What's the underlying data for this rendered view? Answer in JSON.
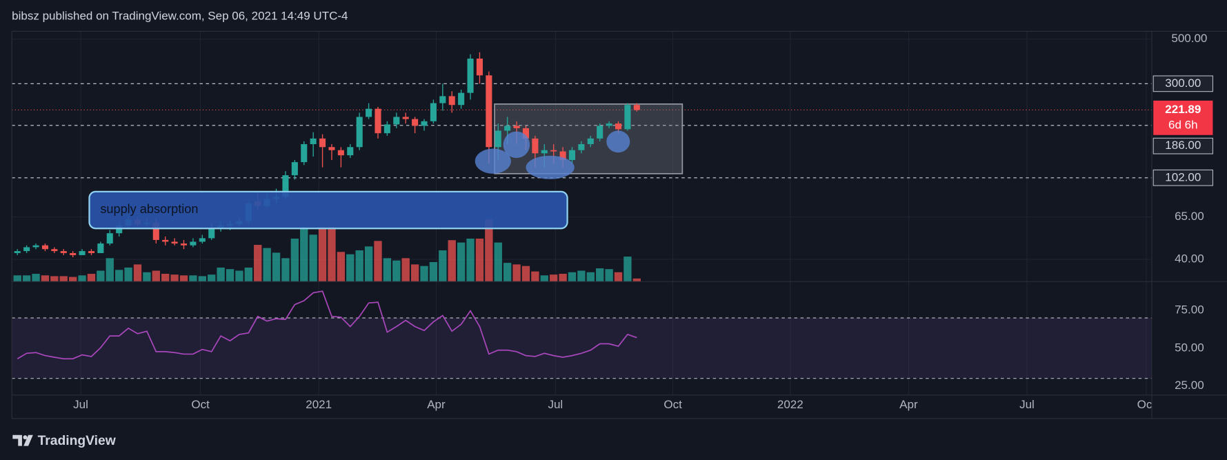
{
  "header": "bibsz published on TradingView.com, Sep 06, 2021 14:49 UTC-4",
  "footer": "TradingView",
  "chart_data": [
    {
      "type": "candlestick",
      "log_scale": true,
      "grid": true,
      "up_color": "#26a69a",
      "down_color": "#ef5350",
      "open": [
        43,
        44,
        46,
        47,
        45,
        44,
        43,
        42,
        44,
        43,
        48,
        54,
        59,
        63,
        60,
        61,
        50,
        49,
        48,
        47,
        49,
        51,
        57,
        59,
        60,
        62,
        78,
        74,
        80,
        82,
        105,
        122,
        150,
        160,
        145,
        140,
        132,
        145,
        205,
        225,
        170,
        188,
        205,
        200,
        185,
        195,
        240,
        260,
        235,
        270,
        400,
        330,
        145,
        175,
        185,
        180,
        160,
        135,
        140,
        138,
        125,
        140,
        150,
        160,
        185,
        190,
        178,
        235
      ],
      "high": [
        45,
        47,
        48,
        48,
        46,
        45,
        44,
        45,
        45,
        49,
        56,
        61,
        66,
        65,
        64,
        64,
        52,
        51,
        50,
        51,
        53,
        60,
        62,
        63,
        64,
        78,
        86,
        85,
        90,
        110,
        125,
        155,
        172,
        168,
        150,
        145,
        150,
        215,
        240,
        230,
        195,
        215,
        215,
        205,
        200,
        250,
        300,
        275,
        280,
        420,
        430,
        345,
        190,
        205,
        195,
        185,
        165,
        150,
        150,
        145,
        145,
        155,
        165,
        190,
        195,
        195,
        240,
        240
      ],
      "low": [
        42,
        43,
        45,
        44,
        43,
        42,
        41,
        42,
        42,
        43,
        47,
        52,
        57,
        58,
        58,
        48,
        47,
        47,
        45,
        46,
        48,
        50,
        55,
        56,
        58,
        60,
        70,
        72,
        76,
        80,
        100,
        118,
        130,
        115,
        125,
        115,
        128,
        140,
        200,
        160,
        165,
        180,
        190,
        170,
        175,
        190,
        220,
        215,
        225,
        250,
        300,
        120,
        125,
        150,
        150,
        140,
        115,
        115,
        120,
        115,
        120,
        135,
        145,
        155,
        180,
        170,
        175,
        218
      ],
      "close": [
        44,
        46,
        47,
        45,
        44,
        43,
        42,
        44,
        43,
        48,
        54,
        59,
        63,
        60,
        61,
        50,
        49,
        48,
        47,
        49,
        51,
        57,
        59,
        60,
        62,
        76,
        74,
        80,
        82,
        105,
        122,
        150,
        160,
        145,
        140,
        132,
        145,
        205,
        225,
        170,
        188,
        205,
        200,
        185,
        195,
        240,
        260,
        235,
        270,
        400,
        330,
        145,
        175,
        185,
        180,
        160,
        135,
        140,
        138,
        125,
        140,
        150,
        160,
        185,
        190,
        178,
        235,
        221.89
      ],
      "volume": {
        "values": [
          8,
          8,
          10,
          8,
          7,
          7,
          6,
          8,
          10,
          14,
          30,
          15,
          18,
          22,
          12,
          14,
          10,
          9,
          8,
          8,
          7,
          9,
          18,
          16,
          14,
          18,
          47,
          43,
          37,
          30,
          55,
          70,
          60,
          70,
          70,
          38,
          35,
          40,
          45,
          52,
          30,
          27,
          30,
          22,
          20,
          25,
          40,
          53,
          50,
          55,
          55,
          80,
          50,
          24,
          22,
          20,
          13,
          8,
          9,
          10,
          12,
          14,
          12,
          17,
          16,
          12,
          32,
          4
        ],
        "ylim": [
          0,
          100
        ]
      },
      "ylim": [
        31,
        547
      ],
      "yticks": [
        {
          "value": 500,
          "label": "500.00"
        },
        {
          "value": 65,
          "label": "65.00"
        },
        {
          "value": 40,
          "label": "40.00"
        }
      ],
      "levels": [
        {
          "value": 300,
          "label": "300.00"
        },
        {
          "value": 186,
          "label": "186.00"
        },
        {
          "value": 102,
          "label": "102.00"
        }
      ],
      "last_price": {
        "value": 221.89,
        "label": "221.89"
      },
      "countdown": "6d 6h",
      "xlim": [
        -0.6,
        122.7
      ],
      "xticks": [
        {
          "value": 6.85,
          "label": "Jul"
        },
        {
          "value": 19.8,
          "label": "Oct"
        },
        {
          "value": 32.6,
          "label": "2021"
        },
        {
          "value": 45.3,
          "label": "Apr"
        },
        {
          "value": 58.2,
          "label": "Jul"
        },
        {
          "value": 70.9,
          "label": "Oct"
        },
        {
          "value": 83.6,
          "label": "2022"
        },
        {
          "value": 96.4,
          "label": "Apr"
        },
        {
          "value": 109.2,
          "label": "Jul"
        },
        {
          "value": 122.1,
          "label": "Oct"
        }
      ],
      "annotations": [
        "supply absorption"
      ]
    },
    {
      "type": "line",
      "color": "#ab47bc",
      "values": [
        43.0,
        46.6,
        47.1,
        45.1,
        44.0,
        43.0,
        43.0,
        45.6,
        44.5,
        50.3,
        58.1,
        58.1,
        63.2,
        59.6,
        61.2,
        47.7,
        47.7,
        47.1,
        46.1,
        46.1,
        49.2,
        47.7,
        58.1,
        54.9,
        59.1,
        60.1,
        71.0,
        67.9,
        69.5,
        69.0,
        78.8,
        81.4,
        86.6,
        87.7,
        71.0,
        70.5,
        64.3,
        71.0,
        79.9,
        80.4,
        60.6,
        64.3,
        68.4,
        64.3,
        61.7,
        67.4,
        71.6,
        61.2,
        65.8,
        74.7,
        64.3,
        46.1,
        48.7,
        48.7,
        47.7,
        45.1,
        44.5,
        46.6,
        45.1,
        44.0,
        45.1,
        46.6,
        48.7,
        52.9,
        52.9,
        51.3,
        59.1,
        57.0
      ],
      "ylim": [
        19,
        94
      ],
      "yticks": [
        {
          "value": 75,
          "label": "75.00"
        },
        {
          "value": 50,
          "label": "50.00"
        },
        {
          "value": 25,
          "label": "25.00"
        }
      ],
      "band": [
        30,
        70
      ]
    }
  ]
}
